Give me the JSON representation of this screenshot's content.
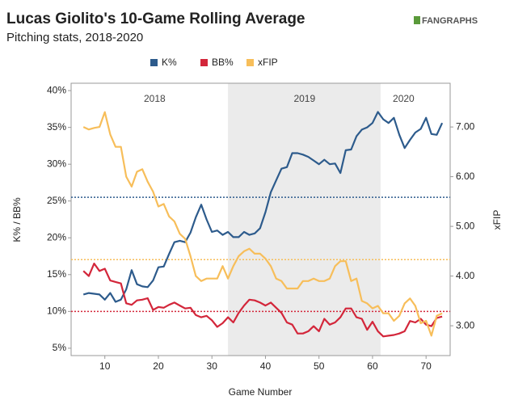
{
  "chart_data": {
    "type": "line",
    "title": "Lucas Giolito's 10-Game Rolling Average",
    "subtitle": "Pitching stats, 2018-2020",
    "brand": "FANGRAPHS",
    "xlabel": "Game Number",
    "ylabel": "K% / BB%",
    "y2label": "xFIP",
    "x": [
      6,
      7,
      8,
      9,
      10,
      11,
      12,
      13,
      14,
      15,
      16,
      17,
      18,
      19,
      20,
      21,
      22,
      23,
      24,
      25,
      26,
      27,
      28,
      29,
      30,
      31,
      32,
      33,
      34,
      35,
      36,
      37,
      38,
      39,
      40,
      41,
      42,
      43,
      44,
      45,
      46,
      47,
      48,
      49,
      50,
      51,
      52,
      53,
      54,
      55,
      56,
      57,
      58,
      59,
      60,
      61,
      62,
      63,
      64,
      65,
      66,
      67,
      68,
      69,
      70,
      71,
      72,
      73
    ],
    "xlim": [
      3.7,
      74.5
    ],
    "xticks": [
      10,
      20,
      30,
      40,
      50,
      60,
      70
    ],
    "ylim": [
      4,
      41
    ],
    "yticks": [
      {
        "value": 5,
        "label": "5%"
      },
      {
        "value": 10,
        "label": "10%"
      },
      {
        "value": 15,
        "label": "15%"
      },
      {
        "value": 20,
        "label": "20%"
      },
      {
        "value": 25,
        "label": "25%"
      },
      {
        "value": 30,
        "label": "30%"
      },
      {
        "value": 35,
        "label": "35%"
      },
      {
        "value": 40,
        "label": "40%"
      }
    ],
    "y2lim": [
      2.4,
      7.88
    ],
    "y2ticks": [
      {
        "value": 3,
        "label": "3.00"
      },
      {
        "value": 4,
        "label": "4.00"
      },
      {
        "value": 5,
        "label": "5.00"
      },
      {
        "value": 6,
        "label": "6.00"
      },
      {
        "value": 7,
        "label": "7.00"
      }
    ],
    "legend": "top",
    "series": [
      {
        "name": "K%",
        "color": "#2d5b8c",
        "values": [
          12.3,
          12.5,
          12.4,
          12.3,
          11.6,
          12.5,
          11.3,
          11.6,
          13,
          15.6,
          13.7,
          13.4,
          13.3,
          14.2,
          16,
          16.1,
          17.8,
          19.4,
          19.6,
          19.4,
          20.7,
          22.8,
          24.5,
          22.5,
          20.8,
          21,
          20.4,
          20.8,
          20.1,
          20.1,
          20.8,
          20.4,
          20.6,
          21.3,
          23.5,
          26.2,
          27.8,
          29.4,
          29.6,
          31.5,
          31.5,
          31.3,
          31,
          30.5,
          30,
          30.6,
          30,
          30.1,
          28.8,
          31.9,
          32,
          33.8,
          34.7,
          35,
          35.6,
          37.1,
          36.1,
          35.6,
          36.3,
          34,
          32.2,
          33.3,
          34.3,
          34.8,
          36.3,
          34.1,
          34,
          35.6
        ]
      },
      {
        "name": "BB%",
        "color": "#d3263a",
        "values": [
          15.5,
          14.8,
          16.5,
          15.5,
          15.8,
          14.2,
          14,
          13.8,
          11.1,
          10.9,
          11.5,
          11.6,
          11.8,
          10.2,
          10.6,
          10.5,
          10.9,
          11.2,
          10.8,
          10.4,
          10.5,
          9.5,
          9.2,
          9.4,
          8.8,
          7.9,
          8.4,
          9.2,
          8.5,
          9.8,
          10.8,
          11.6,
          11.5,
          11.2,
          10.8,
          11.2,
          10.5,
          9.8,
          8.5,
          8.2,
          7,
          7,
          7.3,
          8,
          7.3,
          9,
          8.2,
          8.5,
          9.2,
          10.4,
          10.4,
          9.2,
          9,
          7.5,
          8.6,
          7.3,
          6.6,
          6.7,
          6.8,
          7,
          7.3,
          8.7,
          8.5,
          9,
          8.2,
          8,
          9.1,
          9.3
        ]
      },
      {
        "name": "xFIP",
        "color": "#f7be5a",
        "axis": "y2",
        "values": [
          7.0,
          6.95,
          6.98,
          7.0,
          7.3,
          6.85,
          6.6,
          6.6,
          6.0,
          5.8,
          6.1,
          6.15,
          5.9,
          5.7,
          5.4,
          5.45,
          5.2,
          5.1,
          4.85,
          4.75,
          4.4,
          4.0,
          3.9,
          3.95,
          3.95,
          3.95,
          4.2,
          3.95,
          4.2,
          4.4,
          4.5,
          4.55,
          4.45,
          4.45,
          4.35,
          4.2,
          3.95,
          3.9,
          3.75,
          3.75,
          3.75,
          3.9,
          3.9,
          3.95,
          3.9,
          3.9,
          3.95,
          4.2,
          4.3,
          4.3,
          3.9,
          3.95,
          3.5,
          3.45,
          3.35,
          3.4,
          3.25,
          3.25,
          3.1,
          3.2,
          3.45,
          3.55,
          3.4,
          3.05,
          3.1,
          2.8,
          3.2,
          3.25
        ]
      }
    ],
    "shaded_regions": [
      {
        "label": "2019",
        "start": 33,
        "end": 61.5,
        "color": "#ebebeb"
      }
    ],
    "season_labels": [
      {
        "label": "2018",
        "x": 19.3
      },
      {
        "label": "2019",
        "x": 47.3
      },
      {
        "label": "2020",
        "x": 65.8
      }
    ],
    "reference_lines": [
      {
        "axis": "y",
        "value": 25.5,
        "color": "#2d5b8c"
      },
      {
        "axis": "y",
        "value": 10,
        "color": "#d3263a"
      },
      {
        "axis": "y2",
        "value": 4.33,
        "color": "#f7be5a"
      }
    ]
  }
}
